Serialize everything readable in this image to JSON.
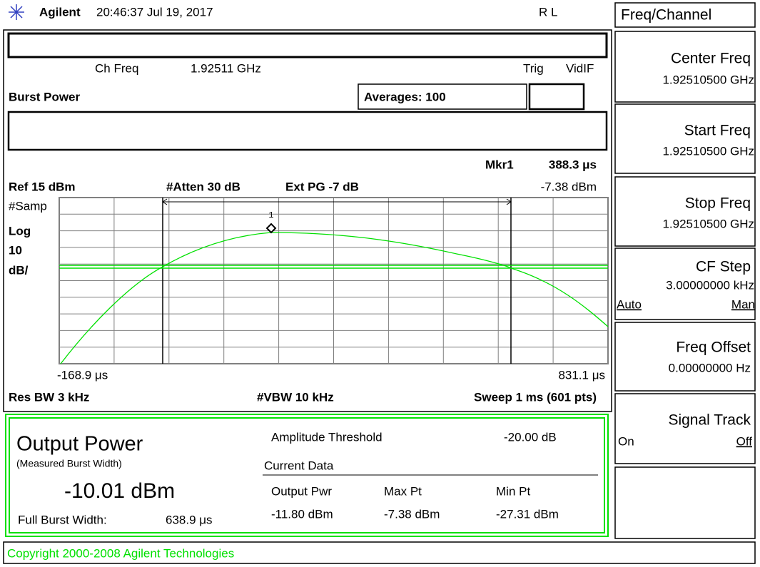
{
  "header": {
    "brand": "Agilent",
    "datetime": "20:46:37  Jul 19, 2017",
    "status": "R L"
  },
  "menu": {
    "title": "Freq/Channel",
    "softkeys": [
      {
        "label": "Center Freq",
        "value": "1.92510500 GHz"
      },
      {
        "label": "Start Freq",
        "value": "1.92510500 GHz"
      },
      {
        "label": "Stop Freq",
        "value": "1.92510500 GHz"
      },
      {
        "label": "CF Step",
        "value": "3.00000000 kHz",
        "options": [
          "Auto",
          "Man"
        ]
      },
      {
        "label": "Freq Offset",
        "value": "0.00000000  Hz"
      },
      {
        "label": "Signal Track",
        "options": [
          "On",
          "Off"
        ]
      }
    ]
  },
  "measurement": {
    "ch_freq_label": "Ch Freq",
    "ch_freq": "1.92511 GHz",
    "trig_label": "Trig",
    "trig": "VidIF",
    "mode": "Burst Power",
    "averages": "Averages: 100"
  },
  "marker": {
    "name": "Mkr1",
    "time": "388.3 μs",
    "level": "-7.38 dBm",
    "number": "1"
  },
  "plot": {
    "ref": "Ref 15 dBm",
    "atten": "#Atten 30 dB",
    "ext_pg": "Ext PG -7 dB",
    "detector": "#Samp",
    "scale": [
      "Log",
      "10",
      "dB/"
    ],
    "x_start": "-168.9 μs",
    "x_stop": "831.1 μs",
    "res_bw": "Res BW 3 kHz",
    "vbw": "#VBW 10 kHz",
    "sweep": "Sweep 1 ms (601 pts)"
  },
  "results": {
    "title": "Output Power",
    "subtitle": "(Measured Burst Width)",
    "value": "-10.01 dBm",
    "full_burst_label": "Full Burst Width:",
    "full_burst": "638.9 μs",
    "threshold_label": "Amplitude Threshold",
    "threshold": "-20.00 dB",
    "current_data": "Current Data",
    "columns": [
      "Output Pwr",
      "Max Pt",
      "Min Pt"
    ],
    "values": [
      "-11.80 dBm",
      "-7.38 dBm",
      "-27.31 dBm"
    ]
  },
  "footer": {
    "copyright": "Copyright 2000-2008 Agilent Technologies"
  }
}
